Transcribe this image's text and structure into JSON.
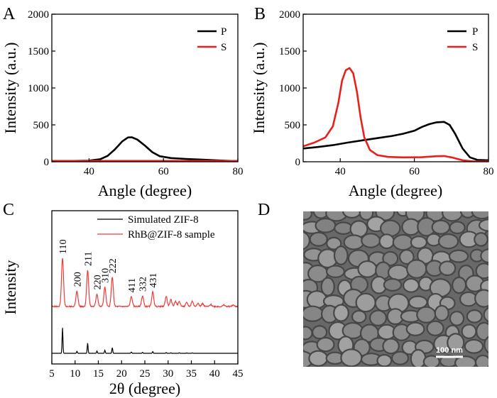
{
  "panels": {
    "a": "A",
    "b": "B",
    "c": "C",
    "d": "D"
  },
  "colors": {
    "black": "#000000",
    "red": "#e8201c",
    "red_xrd": "#ef3b3b",
    "sem_bg": "#6b6b6b"
  },
  "chart_data": [
    {
      "id": "A",
      "type": "line",
      "xlabel": "Angle (degree)",
      "ylabel": "Intensity (a.u.)",
      "xlim": [
        30,
        80
      ],
      "ylim": [
        0,
        2000
      ],
      "xticks": [
        "40",
        "60",
        "80"
      ],
      "yticks": [
        "0",
        "500",
        "1000",
        "1500",
        "2000"
      ],
      "legend": {
        "position": "top-right"
      },
      "series": [
        {
          "name": "P",
          "color": "#000000",
          "x": [
            30,
            36,
            40,
            43,
            45,
            47,
            49,
            50.5,
            51.5,
            53,
            55,
            57,
            59,
            62,
            66,
            70,
            74,
            78,
            80
          ],
          "y": [
            12,
            12,
            15,
            35,
            80,
            170,
            280,
            330,
            332,
            300,
            220,
            130,
            75,
            50,
            38,
            30,
            20,
            12,
            10
          ]
        },
        {
          "name": "S",
          "color": "#e8201c",
          "x": [
            30,
            40,
            50,
            60,
            70,
            80
          ],
          "y": [
            12,
            12,
            12,
            12,
            12,
            12
          ]
        }
      ]
    },
    {
      "id": "B",
      "type": "line",
      "xlabel": "Angle (degree)",
      "ylabel": "Intensity (a.u.)",
      "xlim": [
        30,
        80
      ],
      "ylim": [
        0,
        2000
      ],
      "xticks": [
        "40",
        "60",
        "80"
      ],
      "yticks": [
        "0",
        "500",
        "1000",
        "1500",
        "2000"
      ],
      "legend": {
        "position": "top-right"
      },
      "series": [
        {
          "name": "P",
          "color": "#000000",
          "x": [
            30,
            34,
            38,
            42,
            46,
            50,
            54,
            57,
            60,
            62,
            64,
            66,
            68,
            69.5,
            71,
            73,
            75,
            77,
            80
          ],
          "y": [
            180,
            200,
            225,
            260,
            290,
            320,
            350,
            380,
            420,
            470,
            510,
            535,
            540,
            500,
            380,
            180,
            60,
            25,
            20
          ]
        },
        {
          "name": "S",
          "color": "#e8201c",
          "x": [
            30,
            33,
            36,
            38,
            39.5,
            40.5,
            41.5,
            42.5,
            43.5,
            44.5,
            45.5,
            46.5,
            48,
            50,
            53,
            57,
            62,
            66,
            68,
            70,
            73,
            76,
            80
          ],
          "y": [
            210,
            260,
            330,
            480,
            800,
            1100,
            1240,
            1270,
            1200,
            950,
            600,
            330,
            160,
            90,
            65,
            60,
            62,
            75,
            78,
            60,
            20,
            5,
            5
          ]
        }
      ]
    },
    {
      "id": "C",
      "type": "line",
      "xlabel": "2θ (degree)",
      "ylabel": "Intensity",
      "xlim": [
        5,
        45
      ],
      "xticks": [
        "5",
        "10",
        "15",
        "20",
        "25",
        "30",
        "35",
        "40",
        "45"
      ],
      "legend_entries": [
        "Simulated ZIF-8",
        "RhB@ZIF-8 sample"
      ],
      "peak_labels": [
        {
          "text": "110",
          "two_theta": 7.3
        },
        {
          "text": "200",
          "two_theta": 10.4
        },
        {
          "text": "211",
          "two_theta": 12.7
        },
        {
          "text": "220",
          "two_theta": 14.7
        },
        {
          "text": "310",
          "two_theta": 16.4
        },
        {
          "text": "222",
          "two_theta": 18.0
        },
        {
          "text": "411",
          "two_theta": 22.1
        },
        {
          "text": "332",
          "two_theta": 24.5
        },
        {
          "text": "431",
          "two_theta": 26.7
        }
      ],
      "series": [
        {
          "name": "Simulated ZIF-8",
          "color": "#000000",
          "peaks": [
            [
              7.3,
              100
            ],
            [
              10.4,
              8
            ],
            [
              12.7,
              40
            ],
            [
              14.7,
              9
            ],
            [
              16.4,
              12
            ],
            [
              18.0,
              22
            ],
            [
              22.1,
              5
            ],
            [
              24.5,
              4
            ],
            [
              26.7,
              7
            ],
            [
              29.6,
              3
            ],
            [
              30.6,
              2
            ],
            [
              32.4,
              2
            ],
            [
              34.0,
              1.5
            ],
            [
              35.2,
              1.5
            ]
          ]
        },
        {
          "name": "RhB@ZIF-8 sample",
          "color": "#ef3b3b",
          "peaks": [
            [
              7.3,
              100
            ],
            [
              10.4,
              32
            ],
            [
              12.7,
              75
            ],
            [
              14.7,
              26
            ],
            [
              16.4,
              40
            ],
            [
              18.0,
              60
            ],
            [
              22.1,
              20
            ],
            [
              24.5,
              22
            ],
            [
              26.7,
              30
            ],
            [
              29.6,
              21
            ],
            [
              30.6,
              14
            ],
            [
              31.6,
              11
            ],
            [
              32.4,
              10
            ],
            [
              34.0,
              8
            ],
            [
              35.2,
              11
            ],
            [
              36.4,
              7
            ],
            [
              37.4,
              6
            ],
            [
              39.2,
              4
            ],
            [
              42.0,
              3
            ],
            [
              44.0,
              3
            ]
          ]
        }
      ]
    }
  ],
  "sem": {
    "scale_label": "100 nm"
  }
}
